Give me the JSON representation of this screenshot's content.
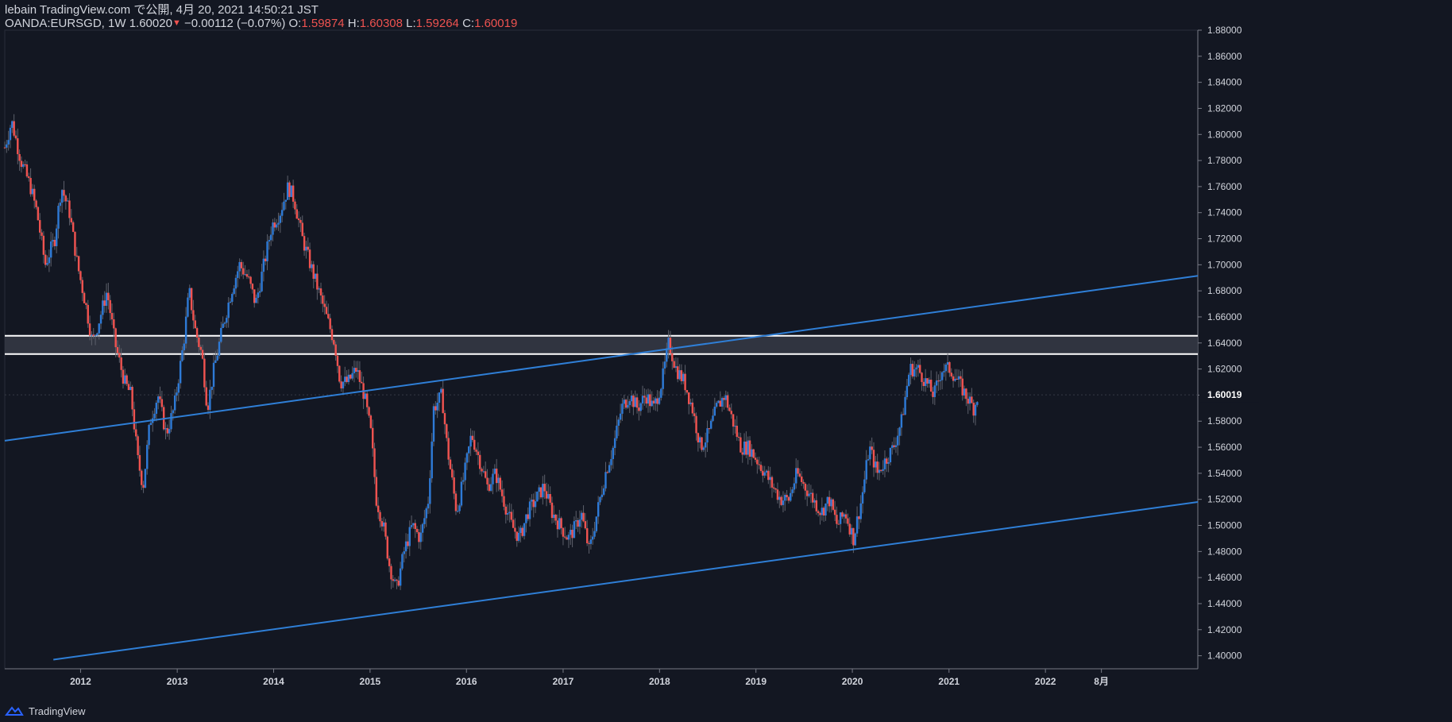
{
  "header": {
    "publish_line": "lebain TradingView.com で公開, 4月 20, 2021 14:50:21 JST",
    "symbol": "OANDA:EURSGD, 1W",
    "last": "1.60020",
    "change": "−0.00112 (−0.07%)",
    "open_label": "O:",
    "open": "1.59874",
    "high_label": "H:",
    "high": "1.60308",
    "low_label": "L:",
    "low": "1.59264",
    "close_label": "C:",
    "close": "1.60019"
  },
  "footer": {
    "brand": "TradingView"
  },
  "colors": {
    "background": "#131722",
    "up": "#2e7ad6",
    "down": "#ef5350",
    "trend": "#2f7fd7",
    "zone": "#363a45",
    "zone_border": "#ffffff",
    "text": "#d1d4dc"
  },
  "chart_data": {
    "type": "candlestick",
    "title": "",
    "xlabel": "",
    "ylabel": "",
    "x_range": [
      "2011-03-20",
      "2023-08-01"
    ],
    "y_range": [
      1.39,
      1.88
    ],
    "y_ticks": [
      "1.40000",
      "1.42000",
      "1.44000",
      "1.46000",
      "1.48000",
      "1.50000",
      "1.52000",
      "1.54000",
      "1.56000",
      "1.58000",
      "1.60000",
      "1.62000",
      "1.64000",
      "1.66000",
      "1.68000",
      "1.70000",
      "1.72000",
      "1.74000",
      "1.76000",
      "1.78000",
      "1.80000",
      "1.82000",
      "1.84000",
      "1.86000",
      "1.88000"
    ],
    "x_ticks": [
      {
        "label": "2012",
        "date": "2012-01-01"
      },
      {
        "label": "2013",
        "date": "2013-01-01"
      },
      {
        "label": "2014",
        "date": "2014-01-01"
      },
      {
        "label": "2015",
        "date": "2015-01-01"
      },
      {
        "label": "2016",
        "date": "2016-01-01"
      },
      {
        "label": "2017",
        "date": "2017-01-01"
      },
      {
        "label": "2018",
        "date": "2018-01-01"
      },
      {
        "label": "2019",
        "date": "2019-01-01"
      },
      {
        "label": "2020",
        "date": "2020-01-01"
      },
      {
        "label": "2021",
        "date": "2021-01-01"
      },
      {
        "label": "2022",
        "date": "2022-01-01"
      },
      {
        "label": "8月",
        "date": "2022-08-01"
      }
    ],
    "last_price_label": "1.60019",
    "last_price": 1.60019,
    "price_path": [
      [
        "2011-03-20",
        1.79
      ],
      [
        "2011-04-15",
        1.81
      ],
      [
        "2011-05-20",
        1.78
      ],
      [
        "2011-06-25",
        1.76
      ],
      [
        "2011-07-20",
        1.74
      ],
      [
        "2011-08-20",
        1.7
      ],
      [
        "2011-09-25",
        1.72
      ],
      [
        "2011-10-20",
        1.76
      ],
      [
        "2011-11-20",
        1.74
      ],
      [
        "2011-12-20",
        1.7
      ],
      [
        "2012-01-20",
        1.67
      ],
      [
        "2012-02-15",
        1.64
      ],
      [
        "2012-03-15",
        1.66
      ],
      [
        "2012-04-10",
        1.68
      ],
      [
        "2012-05-10",
        1.64
      ],
      [
        "2012-06-15",
        1.61
      ],
      [
        "2012-07-10",
        1.6
      ],
      [
        "2012-08-05",
        1.55
      ],
      [
        "2012-08-25",
        1.53
      ],
      [
        "2012-09-20",
        1.58
      ],
      [
        "2012-10-20",
        1.6
      ],
      [
        "2012-11-20",
        1.57
      ],
      [
        "2012-12-20",
        1.59
      ],
      [
        "2013-01-25",
        1.64
      ],
      [
        "2013-02-15",
        1.68
      ],
      [
        "2013-03-10",
        1.65
      ],
      [
        "2013-04-05",
        1.63
      ],
      [
        "2013-04-25",
        1.59
      ],
      [
        "2013-05-20",
        1.62
      ],
      [
        "2013-06-20",
        1.65
      ],
      [
        "2013-07-25",
        1.68
      ],
      [
        "2013-08-25",
        1.7
      ],
      [
        "2013-09-25",
        1.69
      ],
      [
        "2013-10-25",
        1.67
      ],
      [
        "2013-11-25",
        1.7
      ],
      [
        "2013-12-25",
        1.73
      ],
      [
        "2014-01-25",
        1.74
      ],
      [
        "2014-02-25",
        1.76
      ],
      [
        "2014-03-20",
        1.75
      ],
      [
        "2014-04-20",
        1.72
      ],
      [
        "2014-05-20",
        1.7
      ],
      [
        "2014-06-20",
        1.68
      ],
      [
        "2014-07-20",
        1.66
      ],
      [
        "2014-08-20",
        1.64
      ],
      [
        "2014-09-10",
        1.61
      ],
      [
        "2014-10-10",
        1.61
      ],
      [
        "2014-11-10",
        1.62
      ],
      [
        "2014-12-10",
        1.6
      ],
      [
        "2015-01-05",
        1.57
      ],
      [
        "2015-01-25",
        1.52
      ],
      [
        "2015-02-20",
        1.5
      ],
      [
        "2015-03-15",
        1.47
      ],
      [
        "2015-04-10",
        1.45
      ],
      [
        "2015-05-10",
        1.48
      ],
      [
        "2015-06-10",
        1.5
      ],
      [
        "2015-07-10",
        1.49
      ],
      [
        "2015-08-10",
        1.52
      ],
      [
        "2015-08-30",
        1.59
      ],
      [
        "2015-09-30",
        1.6
      ],
      [
        "2015-10-20",
        1.56
      ],
      [
        "2015-11-25",
        1.51
      ],
      [
        "2015-12-25",
        1.54
      ],
      [
        "2016-01-20",
        1.57
      ],
      [
        "2016-02-20",
        1.55
      ],
      [
        "2016-03-20",
        1.53
      ],
      [
        "2016-04-20",
        1.54
      ],
      [
        "2016-05-20",
        1.52
      ],
      [
        "2016-06-20",
        1.5
      ],
      [
        "2016-07-20",
        1.49
      ],
      [
        "2016-08-20",
        1.51
      ],
      [
        "2016-09-20",
        1.52
      ],
      [
        "2016-10-20",
        1.53
      ],
      [
        "2016-11-20",
        1.51
      ],
      [
        "2016-12-20",
        1.5
      ],
      [
        "2017-01-20",
        1.49
      ],
      [
        "2017-02-20",
        1.5
      ],
      [
        "2017-03-10",
        1.51
      ],
      [
        "2017-04-10",
        1.48
      ],
      [
        "2017-05-10",
        1.51
      ],
      [
        "2017-06-10",
        1.54
      ],
      [
        "2017-07-10",
        1.56
      ],
      [
        "2017-08-10",
        1.59
      ],
      [
        "2017-09-10",
        1.6
      ],
      [
        "2017-10-10",
        1.59
      ],
      [
        "2017-11-10",
        1.6
      ],
      [
        "2017-12-10",
        1.59
      ],
      [
        "2018-01-10",
        1.61
      ],
      [
        "2018-02-05",
        1.64
      ],
      [
        "2018-03-05",
        1.62
      ],
      [
        "2018-04-05",
        1.61
      ],
      [
        "2018-05-05",
        1.59
      ],
      [
        "2018-06-05",
        1.56
      ],
      [
        "2018-07-05",
        1.57
      ],
      [
        "2018-08-05",
        1.59
      ],
      [
        "2018-09-05",
        1.6
      ],
      [
        "2018-10-05",
        1.58
      ],
      [
        "2018-11-05",
        1.56
      ],
      [
        "2018-12-05",
        1.56
      ],
      [
        "2019-01-05",
        1.55
      ],
      [
        "2019-02-05",
        1.54
      ],
      [
        "2019-03-05",
        1.53
      ],
      [
        "2019-04-05",
        1.52
      ],
      [
        "2019-05-05",
        1.52
      ],
      [
        "2019-06-05",
        1.54
      ],
      [
        "2019-07-05",
        1.53
      ],
      [
        "2019-08-05",
        1.52
      ],
      [
        "2019-09-05",
        1.51
      ],
      [
        "2019-10-05",
        1.52
      ],
      [
        "2019-11-05",
        1.5
      ],
      [
        "2019-12-05",
        1.51
      ],
      [
        "2020-01-05",
        1.49
      ],
      [
        "2020-02-05",
        1.52
      ],
      [
        "2020-03-05",
        1.56
      ],
      [
        "2020-04-05",
        1.54
      ],
      [
        "2020-05-05",
        1.55
      ],
      [
        "2020-06-05",
        1.56
      ],
      [
        "2020-07-05",
        1.58
      ],
      [
        "2020-08-05",
        1.62
      ],
      [
        "2020-09-05",
        1.62
      ],
      [
        "2020-10-05",
        1.61
      ],
      [
        "2020-11-05",
        1.6
      ],
      [
        "2020-12-05",
        1.62
      ],
      [
        "2021-01-05",
        1.62
      ],
      [
        "2021-02-05",
        1.61
      ],
      [
        "2021-03-05",
        1.6
      ],
      [
        "2021-04-05",
        1.59
      ],
      [
        "2021-04-20",
        1.6
      ]
    ],
    "horizontal_zone": {
      "top": 1.6455,
      "bottom": 1.6315
    },
    "trend_lines": [
      {
        "from": [
          "2011-03-20",
          1.565
        ],
        "to": [
          "2023-08-01",
          1.6915
        ]
      },
      {
        "from": [
          "2011-09-20",
          1.397
        ],
        "to": [
          "2023-08-01",
          1.518
        ]
      }
    ]
  }
}
